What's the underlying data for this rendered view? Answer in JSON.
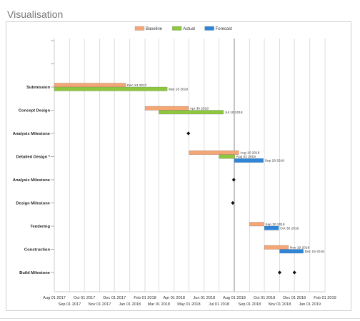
{
  "page": {
    "title": "Visualisation"
  },
  "legend": [
    {
      "label": "Baseline",
      "color": "#f4a675"
    },
    {
      "label": "Actual",
      "color": "#8dc63f"
    },
    {
      "label": "Forecast",
      "color": "#2f86d8"
    }
  ],
  "chart_data": {
    "type": "gantt",
    "legend_position": "top-center",
    "grid": true,
    "x_axis": {
      "range": [
        "2017-08-01",
        "2019-02-01"
      ],
      "ticks_upper": [
        "Aug 01 2017",
        "Oct 01 2017",
        "Dec 01 2017",
        "Feb 01 2018",
        "Apr 01 2018",
        "Jun 01 2018",
        "Aug 01 2018",
        "Oct 01 2018",
        "Dec 01 2018",
        "Feb 01 2019"
      ],
      "ticks_lower": [
        "Sep 01 2017",
        "Nov 01 2017",
        "Jan 01 2018",
        "Mar 01 2018",
        "May 01 2018",
        "Jul 01 2018",
        "Sep 01 2018",
        "Nov 01 2018",
        "Jan 01 2019"
      ],
      "today": "2018-08-01"
    },
    "tasks": [
      {
        "name": ""
      },
      {
        "name": ""
      },
      {
        "name": "Submission",
        "bars": [
          {
            "series": "Baseline",
            "start": "2017-08-01",
            "end": "2017-12-24",
            "label": "Dec 24 2017"
          },
          {
            "series": "Actual",
            "start": "2017-08-01",
            "end": "2018-03-18",
            "label": "Mar 18 2018"
          }
        ]
      },
      {
        "name": "Concept Design",
        "bars": [
          {
            "series": "Baseline",
            "start": "2018-02-01",
            "end": "2018-04-30",
            "label": "Apr 30 2018"
          },
          {
            "series": "Actual",
            "start": "2018-03-01",
            "end": "2018-07-10",
            "label": "Jul 10 2018"
          }
        ]
      },
      {
        "name": "Analysis Milestone",
        "milestones": [
          {
            "date": "2018-04-30"
          }
        ]
      },
      {
        "name": "Detailed Design *",
        "bars": [
          {
            "series": "Baseline",
            "start": "2018-05-01",
            "end": "2018-08-10",
            "label": "Aug 10 2018"
          },
          {
            "series": "Actual",
            "start": "2018-07-01",
            "end": "2018-08-02",
            "label": "Aug 02 2018"
          },
          {
            "series": "Forecast",
            "start": "2018-08-01",
            "end": "2018-09-29",
            "label": "Sep 29 2018"
          }
        ]
      },
      {
        "name": "Analysis Milestone",
        "milestones": [
          {
            "date": "2018-07-31"
          }
        ]
      },
      {
        "name": "Design Milestone",
        "milestones": [
          {
            "date": "2018-07-29"
          }
        ]
      },
      {
        "name": "Tendering",
        "bars": [
          {
            "series": "Baseline",
            "start": "2018-09-01",
            "end": "2018-09-30",
            "label": "Sep 30 2018"
          },
          {
            "series": "Forecast",
            "start": "2018-10-01",
            "end": "2018-10-30",
            "label": "Oct 30 2018"
          }
        ]
      },
      {
        "name": "Construction",
        "bars": [
          {
            "series": "Baseline",
            "start": "2018-10-01",
            "end": "2018-11-19",
            "label": "Nov 19 2018"
          },
          {
            "series": "Forecast",
            "start": "2018-11-01",
            "end": "2018-12-19",
            "label": "Dec 19 2018"
          }
        ]
      },
      {
        "name": "Build Milestone",
        "milestones": [
          {
            "date": "2018-11-01"
          },
          {
            "date": "2018-12-01"
          }
        ]
      }
    ]
  }
}
